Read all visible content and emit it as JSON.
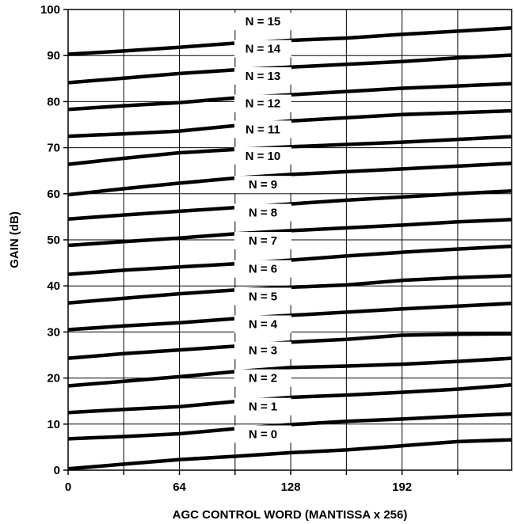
{
  "chart_data": {
    "type": "line",
    "xlabel": "AGC CONTROL WORD (MANTISSA x 256)",
    "ylabel": "GAIN (dB)",
    "xlim": [
      0,
      255
    ],
    "ylim": [
      0,
      100
    ],
    "x_ticks": [
      "0",
      "64",
      "128",
      "192"
    ],
    "y_ticks": [
      "0",
      "10",
      "20",
      "30",
      "40",
      "50",
      "60",
      "70",
      "80",
      "90",
      "100"
    ],
    "grid": true,
    "series": [
      {
        "name": "N = 0",
        "x": [
          0,
          32,
          64,
          96,
          128,
          160,
          192,
          224,
          255
        ],
        "y": [
          0.3,
          1.3,
          2.3,
          3.0,
          3.8,
          4.4,
          5.3,
          6.2,
          6.6
        ]
      },
      {
        "name": "N = 1",
        "x": [
          0,
          32,
          64,
          96,
          128,
          160,
          192,
          224,
          255
        ],
        "y": [
          6.8,
          7.3,
          7.9,
          9.0,
          9.9,
          10.6,
          11.1,
          11.7,
          12.2
        ]
      },
      {
        "name": "N = 2",
        "x": [
          0,
          32,
          64,
          96,
          128,
          160,
          192,
          224,
          255
        ],
        "y": [
          12.5,
          13.2,
          13.8,
          14.9,
          15.8,
          16.3,
          16.9,
          17.6,
          18.5
        ]
      },
      {
        "name": "N = 3",
        "x": [
          0,
          32,
          64,
          96,
          128,
          160,
          192,
          224,
          255
        ],
        "y": [
          18.3,
          19.3,
          20.3,
          21.4,
          22.3,
          22.6,
          23.0,
          23.6,
          24.3
        ]
      },
      {
        "name": "N = 4",
        "x": [
          0,
          32,
          64,
          96,
          128,
          160,
          192,
          224,
          255
        ],
        "y": [
          24.3,
          25.3,
          26.1,
          26.9,
          27.8,
          28.4,
          29.3,
          29.5,
          29.6
        ]
      },
      {
        "name": "N = 5",
        "x": [
          0,
          32,
          64,
          96,
          128,
          160,
          192,
          224,
          255
        ],
        "y": [
          30.5,
          31.3,
          32.0,
          32.9,
          33.6,
          34.3,
          35.0,
          35.6,
          36.2
        ]
      },
      {
        "name": "N = 6",
        "x": [
          0,
          32,
          64,
          96,
          128,
          160,
          192,
          224,
          255
        ],
        "y": [
          36.3,
          37.3,
          38.3,
          39.1,
          39.7,
          40.2,
          41.2,
          41.8,
          42.2
        ]
      },
      {
        "name": "N = 7",
        "x": [
          0,
          32,
          64,
          96,
          128,
          160,
          192,
          224,
          255
        ],
        "y": [
          42.5,
          43.4,
          44.1,
          44.8,
          45.6,
          46.5,
          47.3,
          48.0,
          48.6
        ]
      },
      {
        "name": "N = 8",
        "x": [
          0,
          32,
          64,
          96,
          128,
          160,
          192,
          224,
          255
        ],
        "y": [
          48.8,
          49.6,
          50.4,
          51.3,
          52.0,
          52.6,
          53.2,
          53.9,
          54.4
        ]
      },
      {
        "name": "N = 9",
        "x": [
          0,
          32,
          64,
          96,
          128,
          160,
          192,
          224,
          255
        ],
        "y": [
          54.5,
          55.4,
          56.2,
          57.0,
          57.8,
          58.6,
          59.3,
          60.0,
          60.6
        ]
      },
      {
        "name": "N = 10",
        "x": [
          0,
          32,
          64,
          96,
          128,
          160,
          192,
          224,
          255
        ],
        "y": [
          59.8,
          61.1,
          62.3,
          63.4,
          64.2,
          64.8,
          65.4,
          66.0,
          66.6
        ]
      },
      {
        "name": "N = 11",
        "x": [
          0,
          32,
          64,
          96,
          128,
          160,
          192,
          224,
          255
        ],
        "y": [
          66.4,
          67.7,
          68.9,
          69.6,
          70.2,
          70.7,
          71.2,
          71.8,
          72.4
        ]
      },
      {
        "name": "N = 12",
        "x": [
          0,
          32,
          64,
          96,
          128,
          160,
          192,
          224,
          255
        ],
        "y": [
          72.5,
          73.0,
          73.6,
          74.8,
          75.8,
          76.5,
          77.2,
          77.6,
          78.0
        ]
      },
      {
        "name": "N = 13",
        "x": [
          0,
          32,
          64,
          96,
          128,
          160,
          192,
          224,
          255
        ],
        "y": [
          78.3,
          79.1,
          79.8,
          80.8,
          81.5,
          82.2,
          82.9,
          83.4,
          83.9
        ]
      },
      {
        "name": "N = 14",
        "x": [
          0,
          32,
          64,
          96,
          128,
          160,
          192,
          224,
          255
        ],
        "y": [
          84.1,
          85.1,
          86.1,
          86.9,
          87.5,
          88.1,
          88.7,
          89.5,
          90.1
        ]
      },
      {
        "name": "N = 15",
        "x": [
          0,
          32,
          64,
          96,
          128,
          160,
          192,
          224,
          255
        ],
        "y": [
          90.3,
          91.0,
          91.8,
          92.7,
          93.3,
          93.8,
          94.6,
          95.3,
          96.0
        ]
      }
    ]
  }
}
